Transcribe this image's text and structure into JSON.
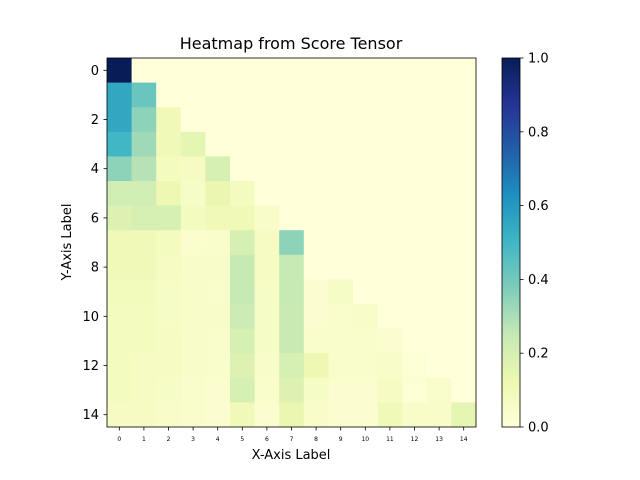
{
  "chart_data": {
    "type": "heatmap",
    "title": "Heatmap from Score Tensor",
    "xlabel": "X-Axis Label",
    "ylabel": "Y-Axis Label",
    "x_tick_labels": [
      "0",
      "1",
      "2",
      "3",
      "4",
      "5",
      "6",
      "7",
      "8",
      "9",
      "10",
      "11",
      "12",
      "13",
      "14"
    ],
    "y_tick_labels": [
      "0",
      "",
      "2",
      "",
      "4",
      "",
      "6",
      "",
      "8",
      "",
      "10",
      "",
      "12",
      "",
      "14"
    ],
    "colormap": "YlGnBu",
    "color_range": [
      0,
      1
    ],
    "colorbar_ticks": [
      "0.0",
      "0.2",
      "0.4",
      "0.6",
      "0.8",
      "1.0"
    ],
    "colorbar_values": [
      0,
      0.2,
      0.4,
      0.6,
      0.8,
      1.0
    ],
    "grid": false,
    "values": [
      [
        1.0,
        0,
        0,
        0,
        0,
        0,
        0,
        0,
        0,
        0,
        0,
        0,
        0,
        0,
        0
      ],
      [
        0.55,
        0.42,
        0,
        0,
        0,
        0,
        0,
        0,
        0,
        0,
        0,
        0,
        0,
        0,
        0
      ],
      [
        0.55,
        0.35,
        0.1,
        0,
        0,
        0,
        0,
        0,
        0,
        0,
        0,
        0,
        0,
        0,
        0
      ],
      [
        0.5,
        0.32,
        0.1,
        0.15,
        0,
        0,
        0,
        0,
        0,
        0,
        0,
        0,
        0,
        0,
        0
      ],
      [
        0.35,
        0.28,
        0.08,
        0.07,
        0.2,
        0,
        0,
        0,
        0,
        0,
        0,
        0,
        0,
        0,
        0
      ],
      [
        0.22,
        0.22,
        0.12,
        0.06,
        0.13,
        0.08,
        0,
        0,
        0,
        0,
        0,
        0,
        0,
        0,
        0
      ],
      [
        0.18,
        0.2,
        0.2,
        0.08,
        0.1,
        0.1,
        0.05,
        0,
        0,
        0,
        0,
        0,
        0,
        0,
        0
      ],
      [
        0.1,
        0.1,
        0.08,
        0.03,
        0.04,
        0.2,
        0.07,
        0.35,
        0,
        0,
        0,
        0,
        0,
        0,
        0
      ],
      [
        0.1,
        0.1,
        0.07,
        0.05,
        0.05,
        0.25,
        0.07,
        0.25,
        0,
        0,
        0,
        0,
        0,
        0,
        0
      ],
      [
        0.09,
        0.09,
        0.06,
        0.05,
        0.04,
        0.25,
        0.06,
        0.25,
        0.03,
        0.06,
        0,
        0,
        0,
        0,
        0
      ],
      [
        0.08,
        0.08,
        0.06,
        0.05,
        0.05,
        0.23,
        0.06,
        0.24,
        0.03,
        0.04,
        0.05,
        0,
        0,
        0,
        0
      ],
      [
        0.08,
        0.08,
        0.07,
        0.05,
        0.04,
        0.2,
        0.06,
        0.24,
        0.04,
        0.04,
        0.04,
        0.03,
        0,
        0,
        0
      ],
      [
        0.08,
        0.07,
        0.07,
        0.05,
        0.04,
        0.18,
        0.05,
        0.2,
        0.12,
        0.04,
        0.04,
        0.05,
        0.02,
        0,
        0
      ],
      [
        0.08,
        0.07,
        0.06,
        0.04,
        0.03,
        0.2,
        0.04,
        0.18,
        0.06,
        0.03,
        0.03,
        0.07,
        0.02,
        0.04,
        0
      ],
      [
        0.07,
        0.07,
        0.05,
        0.04,
        0.03,
        0.1,
        0.03,
        0.13,
        0.05,
        0.03,
        0.03,
        0.1,
        0.05,
        0.05,
        0.15
      ]
    ]
  }
}
